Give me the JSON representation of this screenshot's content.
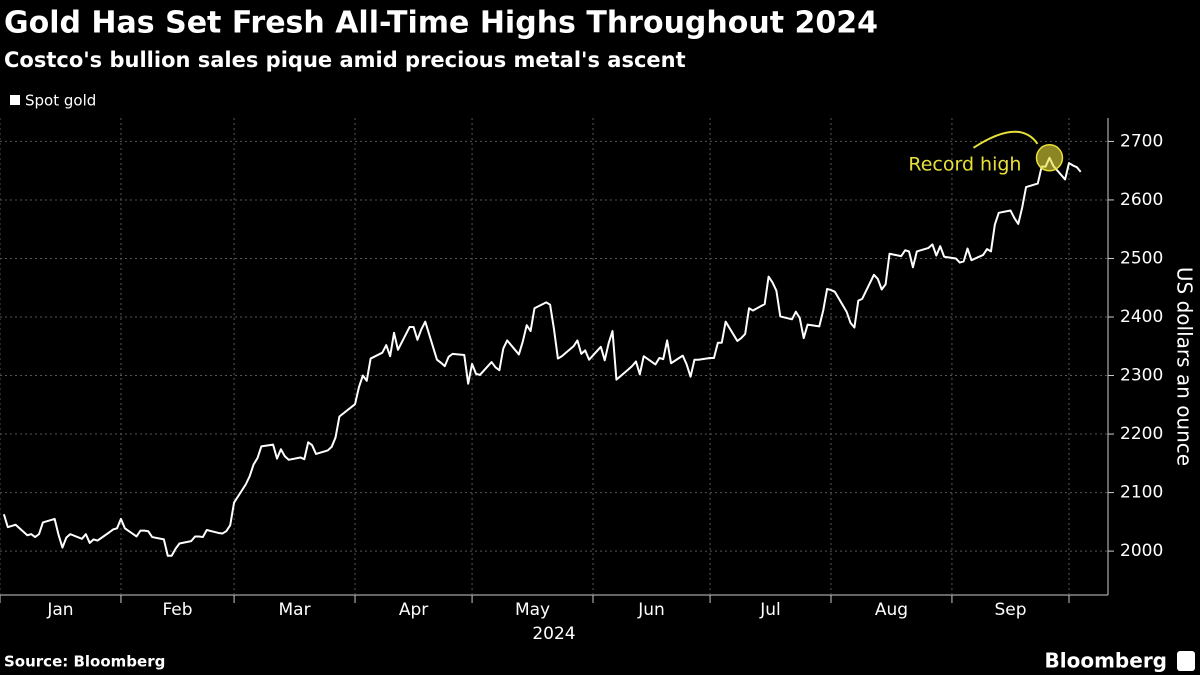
{
  "chart_data": {
    "type": "line",
    "title": "Gold Has Set Fresh All-Time Highs Throughout 2024",
    "subtitle": "Costco's bullion sales pique amid precious metal's ascent",
    "source": "Source: Bloomberg",
    "brand": "Bloomberg",
    "y_label": "US dollars an ounce",
    "x_label": "2024",
    "legend": "top-left",
    "grid": true,
    "xlim": [
      "2024-01-01",
      "2024-10-11"
    ],
    "ylim": [
      1925,
      2740
    ],
    "yticks": [
      2000,
      2100,
      2200,
      2300,
      2400,
      2500,
      2600,
      2700
    ],
    "xticks": [
      {
        "value": "2024-01-01",
        "label": "Jan"
      },
      {
        "value": "2024-02-01",
        "label": "Feb"
      },
      {
        "value": "2024-03-01",
        "label": "Mar"
      },
      {
        "value": "2024-04-01",
        "label": "Apr"
      },
      {
        "value": "2024-05-01",
        "label": "May"
      },
      {
        "value": "2024-06-01",
        "label": "Jun"
      },
      {
        "value": "2024-07-01",
        "label": "Jul"
      },
      {
        "value": "2024-08-01",
        "label": "Aug"
      },
      {
        "value": "2024-09-01",
        "label": "Sep"
      },
      {
        "value": "2024-10-01",
        "label": null
      }
    ],
    "annotations": [
      {
        "text": "Record high",
        "x": "2024-09-26",
        "color": "#e8e03a"
      }
    ],
    "x": [
      "2024-01-02",
      "2024-01-03",
      "2024-01-04",
      "2024-01-05",
      "2024-01-08",
      "2024-01-09",
      "2024-01-10",
      "2024-01-11",
      "2024-01-12",
      "2024-01-15",
      "2024-01-16",
      "2024-01-17",
      "2024-01-18",
      "2024-01-19",
      "2024-01-22",
      "2024-01-23",
      "2024-01-24",
      "2024-01-25",
      "2024-01-26",
      "2024-01-29",
      "2024-01-30",
      "2024-01-31",
      "2024-02-01",
      "2024-02-02",
      "2024-02-05",
      "2024-02-06",
      "2024-02-07",
      "2024-02-08",
      "2024-02-09",
      "2024-02-12",
      "2024-02-13",
      "2024-02-14",
      "2024-02-15",
      "2024-02-16",
      "2024-02-19",
      "2024-02-20",
      "2024-02-21",
      "2024-02-22",
      "2024-02-23",
      "2024-02-26",
      "2024-02-27",
      "2024-02-28",
      "2024-02-29",
      "2024-03-01",
      "2024-03-04",
      "2024-03-05",
      "2024-03-06",
      "2024-03-07",
      "2024-03-08",
      "2024-03-11",
      "2024-03-12",
      "2024-03-13",
      "2024-03-14",
      "2024-03-15",
      "2024-03-18",
      "2024-03-19",
      "2024-03-20",
      "2024-03-21",
      "2024-03-22",
      "2024-03-25",
      "2024-03-26",
      "2024-03-27",
      "2024-03-28",
      "2024-04-01",
      "2024-04-02",
      "2024-04-03",
      "2024-04-04",
      "2024-04-05",
      "2024-04-08",
      "2024-04-09",
      "2024-04-10",
      "2024-04-11",
      "2024-04-12",
      "2024-04-15",
      "2024-04-16",
      "2024-04-17",
      "2024-04-18",
      "2024-04-19",
      "2024-04-22",
      "2024-04-23",
      "2024-04-24",
      "2024-04-25",
      "2024-04-26",
      "2024-04-29",
      "2024-04-30",
      "2024-05-01",
      "2024-05-02",
      "2024-05-03",
      "2024-05-06",
      "2024-05-07",
      "2024-05-08",
      "2024-05-09",
      "2024-05-10",
      "2024-05-13",
      "2024-05-14",
      "2024-05-15",
      "2024-05-16",
      "2024-05-17",
      "2024-05-20",
      "2024-05-21",
      "2024-05-22",
      "2024-05-23",
      "2024-05-24",
      "2024-05-27",
      "2024-05-28",
      "2024-05-29",
      "2024-05-30",
      "2024-05-31",
      "2024-06-03",
      "2024-06-04",
      "2024-06-05",
      "2024-06-06",
      "2024-06-07",
      "2024-06-10",
      "2024-06-11",
      "2024-06-12",
      "2024-06-13",
      "2024-06-14",
      "2024-06-17",
      "2024-06-18",
      "2024-06-19",
      "2024-06-20",
      "2024-06-21",
      "2024-06-24",
      "2024-06-25",
      "2024-06-26",
      "2024-06-27",
      "2024-06-28",
      "2024-07-01",
      "2024-07-02",
      "2024-07-03",
      "2024-07-04",
      "2024-07-05",
      "2024-07-08",
      "2024-07-09",
      "2024-07-10",
      "2024-07-11",
      "2024-07-12",
      "2024-07-15",
      "2024-07-16",
      "2024-07-17",
      "2024-07-18",
      "2024-07-19",
      "2024-07-22",
      "2024-07-23",
      "2024-07-24",
      "2024-07-25",
      "2024-07-26",
      "2024-07-29",
      "2024-07-30",
      "2024-07-31",
      "2024-08-01",
      "2024-08-02",
      "2024-08-05",
      "2024-08-06",
      "2024-08-07",
      "2024-08-08",
      "2024-08-09",
      "2024-08-12",
      "2024-08-13",
      "2024-08-14",
      "2024-08-15",
      "2024-08-16",
      "2024-08-19",
      "2024-08-20",
      "2024-08-21",
      "2024-08-22",
      "2024-08-23",
      "2024-08-26",
      "2024-08-27",
      "2024-08-28",
      "2024-08-29",
      "2024-08-30",
      "2024-09-02",
      "2024-09-03",
      "2024-09-04",
      "2024-09-05",
      "2024-09-06",
      "2024-09-09",
      "2024-09-10",
      "2024-09-11",
      "2024-09-12",
      "2024-09-13",
      "2024-09-16",
      "2024-09-17",
      "2024-09-18",
      "2024-09-19",
      "2024-09-20",
      "2024-09-23",
      "2024-09-24",
      "2024-09-25",
      "2024-09-26",
      "2024-09-27",
      "2024-09-30",
      "2024-10-01",
      "2024-10-02",
      "2024-10-03",
      "2024-10-04"
    ],
    "series": [
      {
        "name": "Spot gold",
        "color": "#ffffff",
        "values": [
          2063,
          2041,
          2043,
          2045,
          2027,
          2029,
          2024,
          2029,
          2049,
          2055,
          2028,
          2006,
          2023,
          2029,
          2021,
          2029,
          2014,
          2020,
          2018,
          2032,
          2037,
          2039,
          2055,
          2039,
          2025,
          2035,
          2035,
          2034,
          2024,
          2020,
          1992,
          1992,
          2004,
          2013,
          2017,
          2025,
          2025,
          2024,
          2036,
          2031,
          2030,
          2034,
          2044,
          2083,
          2114,
          2128,
          2148,
          2159,
          2179,
          2182,
          2158,
          2174,
          2162,
          2156,
          2160,
          2157,
          2186,
          2181,
          2166,
          2172,
          2178,
          2194,
          2230,
          2251,
          2280,
          2300,
          2291,
          2329,
          2339,
          2352,
          2333,
          2373,
          2344,
          2383,
          2383,
          2361,
          2379,
          2392,
          2327,
          2322,
          2316,
          2332,
          2337,
          2335,
          2286,
          2320,
          2303,
          2301,
          2323,
          2314,
          2309,
          2346,
          2360,
          2336,
          2358,
          2386,
          2376,
          2415,
          2425,
          2421,
          2379,
          2329,
          2333,
          2350,
          2360,
          2337,
          2343,
          2327,
          2349,
          2326,
          2355,
          2376,
          2293,
          2310,
          2316,
          2324,
          2302,
          2333,
          2319,
          2330,
          2328,
          2360,
          2321,
          2334,
          2319,
          2298,
          2327,
          2327,
          2330,
          2330,
          2356,
          2356,
          2392,
          2359,
          2364,
          2371,
          2415,
          2411,
          2422,
          2469,
          2459,
          2445,
          2401,
          2396,
          2409,
          2398,
          2364,
          2387,
          2384,
          2411,
          2448,
          2446,
          2443,
          2409,
          2390,
          2382,
          2428,
          2431,
          2472,
          2465,
          2447,
          2456,
          2508,
          2504,
          2514,
          2512,
          2485,
          2512,
          2518,
          2524,
          2505,
          2521,
          2503,
          2500,
          2493,
          2495,
          2517,
          2497,
          2506,
          2516,
          2512,
          2558,
          2578,
          2582,
          2569,
          2559,
          2587,
          2622,
          2628,
          2657,
          2657,
          2672,
          2658,
          2635,
          2663,
          2659,
          2656,
          2648
        ]
      }
    ]
  }
}
